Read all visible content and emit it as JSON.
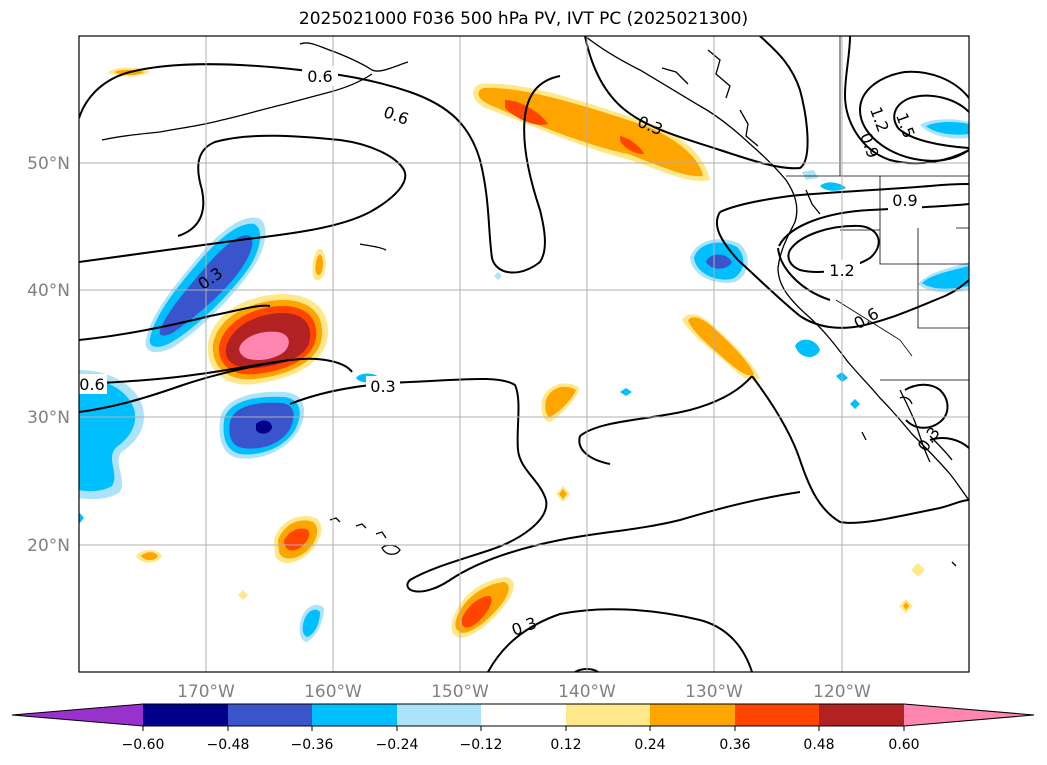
{
  "title": "2025021000 F036 500 hPa PV, IVT PC (2025021300)",
  "map": {
    "lat_labels": [
      "50°N",
      "40°N",
      "30°N",
      "20°N"
    ],
    "lon_labels": [
      "170°W",
      "160°W",
      "150°W",
      "140°W",
      "130°W",
      "120°W"
    ],
    "contour_labels": [
      "0.6",
      "0.6",
      "0.3",
      "0.3",
      "0.6",
      "0.3",
      "0.9",
      "1.2",
      "1.5",
      "0.9",
      "1.2",
      "0.6",
      "0.3",
      "0.3"
    ]
  },
  "colorbar": {
    "ticks": [
      "−0.60",
      "−0.48",
      "−0.36",
      "−0.24",
      "−0.12",
      "0.12",
      "0.24",
      "0.36",
      "0.48",
      "0.60"
    ],
    "colors": [
      "#9932cc",
      "#00008b",
      "#3a55cc",
      "#00bfff",
      "#ade3f8",
      "#ffffff",
      "#ffe88a",
      "#ffa500",
      "#ff4500",
      "#b22222",
      "#ff86b0",
      "#ff86b0"
    ]
  },
  "colors": {
    "neg_strong": "#00008b",
    "neg_mid": "#3a55cc",
    "neg_light": "#00bfff",
    "neg_pale": "#ade3f8",
    "pos_pale": "#ffe88a",
    "pos_light": "#ffa500",
    "pos_mid": "#ff4500",
    "pos_strong": "#b22222",
    "pos_max": "#ff86b0",
    "grid": "#b0b0b0"
  }
}
